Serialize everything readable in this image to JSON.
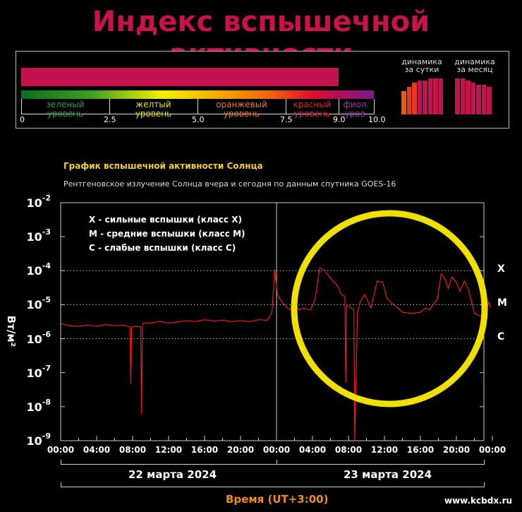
{
  "header": {
    "title": "Индекс вспышечной активности"
  },
  "index_scale": {
    "current_value": 9.0,
    "max": 10.0,
    "levels": [
      {
        "label_line1": "зеленый",
        "label_line2": "уровень",
        "color": "#2aa04a"
      },
      {
        "label_line1": "желтый",
        "label_line2": "уровень",
        "color": "#e8e000"
      },
      {
        "label_line1": "оранжевый",
        "label_line2": "уровень",
        "color": "#ef7a20"
      },
      {
        "label_line1": "красный",
        "label_line2": "уровень",
        "color": "#e0202a"
      },
      {
        "label_line1": "фиол.",
        "label_line2": "уров.",
        "color": "#9a3aa8"
      }
    ],
    "ticks": [
      "0",
      "2.5",
      "5.0",
      "7.5",
      "9.0",
      "10.0"
    ],
    "bar_color": "#c2124f"
  },
  "dynamics": {
    "day": {
      "line1": "динамика",
      "line2": "за сутки",
      "values": [
        5.5,
        6.5,
        7.5,
        8,
        8,
        8.5,
        8.5,
        8.5
      ]
    },
    "month": {
      "line1": "динамика",
      "line2": "за месяц",
      "values": [
        8.5,
        8.5,
        8,
        7.5,
        7,
        7,
        6.5
      ]
    }
  },
  "chart_header": {
    "title": "График вспышечной активности Солнца",
    "subtitle": "Рентгеновское излучение Солнца вчера и сегодня по данным спутника GOES-16"
  },
  "legend": [
    "X  - сильные вспышки (класс X)",
    "M  - средние вспышки (класс M)",
    "C  - слабые вспышки (класс C)"
  ],
  "class_labels": [
    "X",
    "M",
    "C"
  ],
  "axis": {
    "ylabel": "Вт/м²",
    "y_ticks": [
      {
        "base": "10",
        "exp": "-2"
      },
      {
        "base": "10",
        "exp": "-3"
      },
      {
        "base": "10",
        "exp": "-4"
      },
      {
        "base": "10",
        "exp": "-5"
      },
      {
        "base": "10",
        "exp": "-6"
      },
      {
        "base": "10",
        "exp": "-7"
      },
      {
        "base": "10",
        "exp": "-8"
      },
      {
        "base": "10",
        "exp": "-9"
      }
    ],
    "x_ticks": [
      "00:00",
      "04:00",
      "08:00",
      "12:00",
      "16:00",
      "20:00",
      "00:00",
      "04:00",
      "08:00",
      "12:00",
      "16:00",
      "20:00",
      "00:00"
    ],
    "dates": [
      "22 марта 2024",
      "23 марта 2024"
    ],
    "xlabel": "Время (UT+3:00)"
  },
  "footer": {
    "url": "www.kcbdx.ru"
  },
  "chart_data": {
    "type": "line",
    "title": "График вспышечной активности Солнца",
    "subtitle": "Рентгеновское излучение Солнца вчера и сегодня по данным спутника GOES-16",
    "xlabel": "Время (UT+3:00)",
    "ylabel": "Вт/м²",
    "y_scale": "log",
    "ylim": [
      1e-09,
      0.01
    ],
    "x_unit": "hours since 22 марта 2024 00:00",
    "xlim": [
      0,
      48
    ],
    "grid": "dotted at 1e-4, 1e-5, 1e-6",
    "series": [
      {
        "color": "#ff1a1a",
        "points": [
          [
            0,
            2.8e-06
          ],
          [
            1,
            2.4e-06
          ],
          [
            2,
            2.3e-06
          ],
          [
            3,
            2.5e-06
          ],
          [
            4,
            2.3e-06
          ],
          [
            5,
            2.6e-06
          ],
          [
            6,
            2.4e-06
          ],
          [
            7,
            2.5e-06
          ],
          [
            7.7,
            2.2e-06
          ],
          [
            7.8,
            4.5e-08
          ],
          [
            7.9,
            2.2e-06
          ],
          [
            8.5,
            2.3e-06
          ],
          [
            8.9,
            2.2e-06
          ],
          [
            9.0,
            6e-09
          ],
          [
            9.1,
            2.8e-06
          ],
          [
            10,
            2.9e-06
          ],
          [
            11,
            3.2e-06
          ],
          [
            12,
            2.9e-06
          ],
          [
            13,
            3.1e-06
          ],
          [
            14,
            3.4e-06
          ],
          [
            15,
            3.2e-06
          ],
          [
            16,
            3.6e-06
          ],
          [
            17,
            3.3e-06
          ],
          [
            18,
            3.5e-06
          ],
          [
            19,
            3.2e-06
          ],
          [
            20,
            3.4e-06
          ],
          [
            21,
            3.2e-06
          ],
          [
            22,
            3.6e-06
          ],
          [
            23,
            3.5e-06
          ],
          [
            23.5,
            6e-06
          ],
          [
            23.8,
            0.00011
          ],
          [
            24.1,
            2e-05
          ],
          [
            24.5,
            1.3e-05
          ],
          [
            25,
            9e-06
          ],
          [
            25.5,
            7e-06
          ],
          [
            26,
            1e-05
          ],
          [
            26.5,
            7e-06
          ],
          [
            27,
            8e-06
          ],
          [
            27.8,
            7e-06
          ],
          [
            28.3,
            1.5e-05
          ],
          [
            28.8,
            0.00012
          ],
          [
            29.3,
            0.000105
          ],
          [
            30,
            6e-05
          ],
          [
            30.8,
            3.5e-05
          ],
          [
            31.2,
            2e-05
          ],
          [
            31.6,
            1.7e-05
          ],
          [
            31.7,
            5e-08
          ],
          [
            31.8,
            1e-05
          ],
          [
            32.3,
            8e-06
          ],
          [
            32.6,
            7e-06
          ],
          [
            32.7,
            1e-09
          ],
          [
            33,
            6e-06
          ],
          [
            33.3,
            1.2e-05
          ],
          [
            33.8,
            2e-05
          ],
          [
            34.5,
            8e-06
          ],
          [
            35.2,
            5e-05
          ],
          [
            35.8,
            4.5e-05
          ],
          [
            36.3,
            1.5e-05
          ],
          [
            37,
            1e-05
          ],
          [
            37.5,
            8e-06
          ],
          [
            38,
            6e-06
          ],
          [
            39,
            5.5e-06
          ],
          [
            40,
            6e-06
          ],
          [
            40.6,
            8e-06
          ],
          [
            41,
            7e-06
          ],
          [
            41.4,
            1e-05
          ],
          [
            41.9,
            1.5e-05
          ],
          [
            42.3,
            8e-05
          ],
          [
            42.7,
            6e-05
          ],
          [
            43.1,
            3e-05
          ],
          [
            43.5,
            6.5e-05
          ],
          [
            44,
            4.5e-05
          ],
          [
            44.4,
            2.5e-05
          ],
          [
            44.9,
            5e-05
          ],
          [
            45.4,
            2.5e-05
          ],
          [
            46,
            5.5e-06
          ],
          [
            46.8,
            4.5e-06
          ],
          [
            47.2,
            5e-06
          ],
          [
            47.6,
            1.2e-05
          ],
          [
            47.8,
            8e-06
          ]
        ]
      }
    ]
  }
}
